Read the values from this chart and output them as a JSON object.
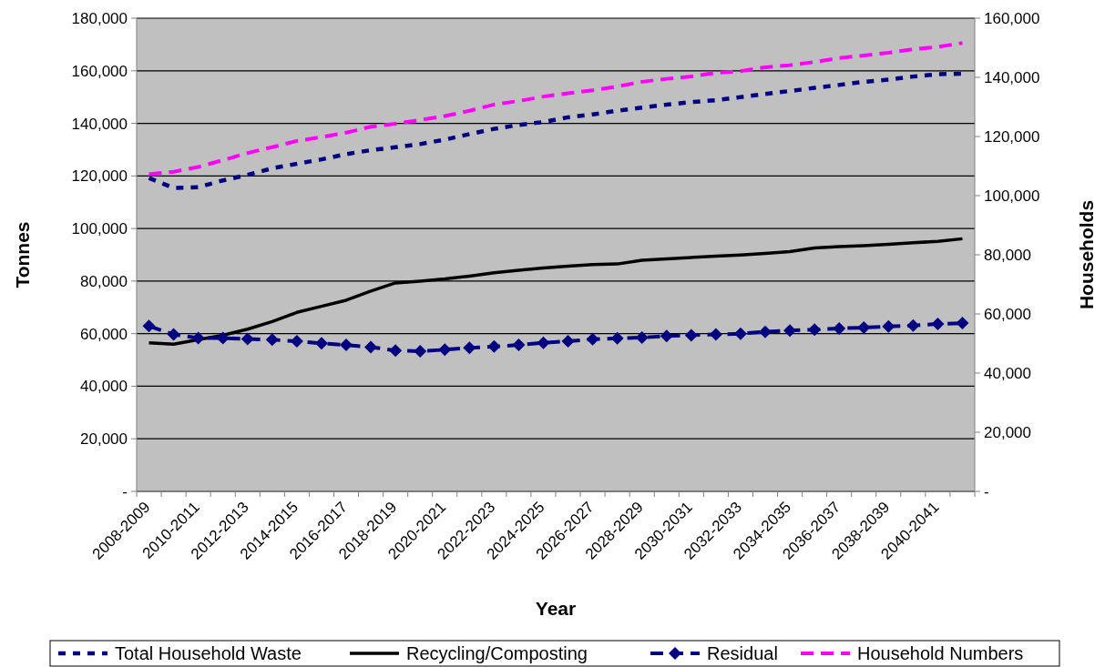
{
  "chart_data": {
    "type": "line",
    "xlabel": "Year",
    "ylabel": "Tonnes",
    "y2label": "Households",
    "categories": [
      "2008-2009",
      null,
      "2010-2011",
      null,
      "2012-2013",
      null,
      "2014-2015",
      null,
      "2016-2017",
      null,
      "2018-2019",
      null,
      "2020-2021",
      null,
      "2022-2023",
      null,
      "2024-2025",
      null,
      "2026-2027",
      null,
      "2028-2029",
      null,
      "2030-2031",
      null,
      "2032-2033",
      null,
      "2034-2035",
      null,
      "2036-2037",
      null,
      "2038-2039",
      null,
      "2040-2041",
      null
    ],
    "ylim": [
      0,
      180000
    ],
    "yticks": [
      {
        "value": 0,
        "label": "-"
      },
      {
        "value": 20000,
        "label": "20,000"
      },
      {
        "value": 40000,
        "label": "40,000"
      },
      {
        "value": 60000,
        "label": "60,000"
      },
      {
        "value": 80000,
        "label": "80,000"
      },
      {
        "value": 100000,
        "label": "100,000"
      },
      {
        "value": 120000,
        "label": "120,000"
      },
      {
        "value": 140000,
        "label": "140,000"
      },
      {
        "value": 160000,
        "label": "160,000"
      },
      {
        "value": 180000,
        "label": "180,000"
      }
    ],
    "y2lim": [
      0,
      160000
    ],
    "y2ticks": [
      {
        "value": 0,
        "label": "-"
      },
      {
        "value": 20000,
        "label": "20,000"
      },
      {
        "value": 40000,
        "label": "40,000"
      },
      {
        "value": 60000,
        "label": "60,000"
      },
      {
        "value": 80000,
        "label": "80,000"
      },
      {
        "value": 100000,
        "label": "100,000"
      },
      {
        "value": 120000,
        "label": "120,000"
      },
      {
        "value": 140000,
        "label": "140,000"
      },
      {
        "value": 160000,
        "label": "160,000"
      }
    ],
    "grid": "y",
    "legend": "bottom",
    "series": [
      {
        "name": "Total Household Waste",
        "color": "#000080",
        "line_style": "dotted",
        "marker": "none",
        "values": [
          119200,
          115400,
          115700,
          118300,
          120400,
          122900,
          124600,
          126300,
          128300,
          129800,
          130900,
          132100,
          133800,
          135900,
          137900,
          139400,
          140500,
          142300,
          143400,
          144800,
          146000,
          147100,
          148100,
          148800,
          150000,
          151200,
          152300,
          153500,
          154600,
          155800,
          156600,
          157800,
          158700,
          158900
        ]
      },
      {
        "name": "Recycling/Composting",
        "color": "#000000",
        "line_style": "solid",
        "marker": "none",
        "values": [
          56500,
          56000,
          57700,
          59400,
          61700,
          64600,
          68100,
          70400,
          72700,
          76200,
          79300,
          80000,
          80800,
          81900,
          83200,
          84100,
          85000,
          85700,
          86300,
          86500,
          87900,
          88400,
          89000,
          89500,
          89900,
          90500,
          91200,
          92600,
          93100,
          93500,
          94000,
          94600,
          95100,
          96100
        ]
      },
      {
        "name": "Residual",
        "color": "#000080",
        "line_style": "dashed",
        "marker": "diamond",
        "values": [
          62900,
          59700,
          58300,
          58300,
          58000,
          57700,
          57100,
          56300,
          55700,
          54900,
          53600,
          53300,
          53900,
          54600,
          55100,
          55700,
          56500,
          57100,
          57900,
          58200,
          58500,
          59100,
          59400,
          59700,
          60000,
          60700,
          61200,
          61500,
          62000,
          62300,
          62700,
          63100,
          63700,
          64000
        ]
      },
      {
        "name": "Household Numbers",
        "color": "#ff00ff",
        "line_style": "dashed",
        "marker": "none",
        "axis": "y2",
        "values": [
          107200,
          108100,
          109700,
          112000,
          114400,
          116400,
          118500,
          119800,
          121300,
          123300,
          124300,
          125600,
          126900,
          128700,
          130800,
          132000,
          133500,
          134600,
          135600,
          136900,
          138500,
          139500,
          140300,
          141500,
          142100,
          143400,
          144100,
          145200,
          146500,
          147400,
          148300,
          149500,
          150300,
          151600
        ]
      }
    ]
  }
}
